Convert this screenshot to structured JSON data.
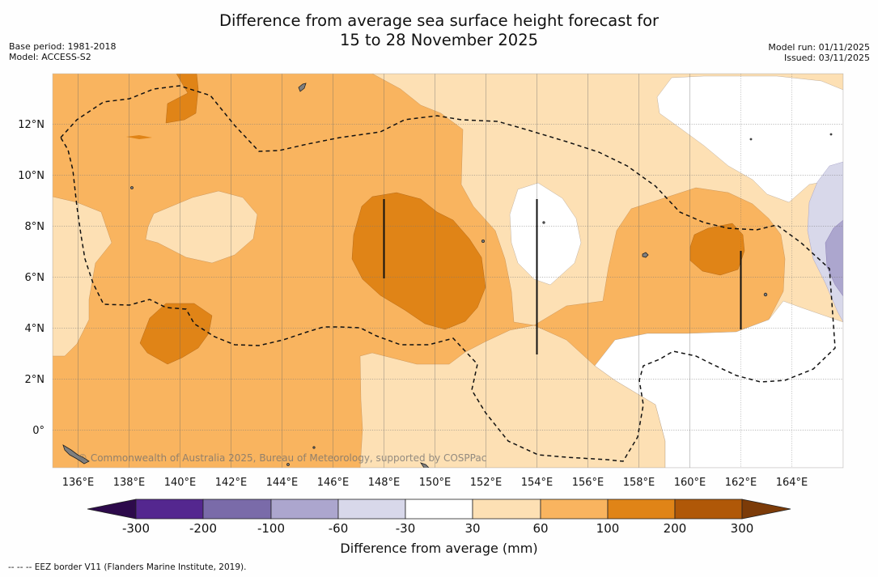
{
  "title": {
    "line1": "Difference from average sea surface height forecast for",
    "line2": "15 to 28 November 2025"
  },
  "meta": {
    "base_period": "Base period: 1981-2018",
    "model": "Model: ACCESS-S2",
    "model_run": "Model run: 01/11/2025",
    "issued": "Issued: 03/11/2025"
  },
  "map": {
    "lon_labels": [
      "136°E",
      "138°E",
      "140°E",
      "142°E",
      "144°E",
      "146°E",
      "148°E",
      "150°E",
      "152°E",
      "154°E",
      "156°E",
      "158°E",
      "160°E",
      "162°E",
      "164°E"
    ],
    "lat_labels": [
      "12°N",
      "10°N",
      "8°N",
      "6°N",
      "4°N",
      "2°N",
      "0°"
    ],
    "lon_range": [
      135,
      166
    ],
    "lat_range": [
      -1.5,
      14
    ],
    "watermark": "© Commonwealth of Australia 2025, Bureau of Meteorology, supported by COSPPac"
  },
  "colorbar": {
    "title": "Difference from average (mm)",
    "tick_labels": [
      "-300",
      "-200",
      "-100",
      "-60",
      "-30",
      "30",
      "60",
      "100",
      "200",
      "300"
    ],
    "colors": {
      "under": "#2d0a4b",
      "c1": "#54278f",
      "c2": "#7a6ba9",
      "c3": "#aca6ce",
      "c4": "#d8d8ea",
      "c5": "#ffffff",
      "c6": "#fde0b4",
      "c7": "#f9b45f",
      "c8": "#e08417",
      "c9": "#b05808",
      "over": "#7c3b08"
    }
  },
  "footer": "--  --  -- EEZ border V11 (Flanders Marine Institute, 2019)."
}
